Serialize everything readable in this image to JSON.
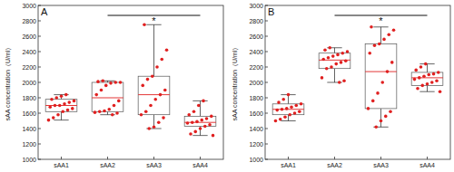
{
  "chart_data": [
    {
      "type": "box",
      "title": "A",
      "y_label": "sAA concentration（U/ml）",
      "color": "#e02020",
      "categories": [
        "sAA1",
        "sAA2",
        "sAA3",
        "sAA4"
      ],
      "ylim": [
        1000,
        3000
      ],
      "yticks": [
        1000,
        1200,
        1400,
        1600,
        1800,
        2000,
        2200,
        2400,
        2600,
        2800,
        3000
      ],
      "boxes": [
        {
          "low": 1510,
          "q1": 1620,
          "median": 1700,
          "q3": 1780,
          "high": 1840
        },
        {
          "low": 1580,
          "q1": 1620,
          "median": 1800,
          "q3": 2000,
          "high": 2020
        },
        {
          "low": 1400,
          "q1": 1580,
          "median": 1840,
          "q3": 2080,
          "high": 2750
        },
        {
          "low": 1310,
          "q1": 1430,
          "median": 1480,
          "q3": 1560,
          "high": 1760
        }
      ],
      "values": [
        [
          1510,
          1540,
          1580,
          1620,
          1640,
          1660,
          1680,
          1700,
          1700,
          1720,
          1740,
          1760,
          1780,
          1800,
          1820,
          1840
        ],
        [
          1580,
          1600,
          1610,
          1620,
          1630,
          1650,
          1700,
          1760,
          1840,
          1900,
          1960,
          1990,
          2000,
          2000,
          2010,
          2020
        ],
        [
          1400,
          1420,
          1480,
          1540,
          1580,
          1620,
          1700,
          1780,
          1840,
          1900,
          1960,
          2040,
          2080,
          2200,
          2300,
          2420,
          2750
        ],
        [
          1310,
          1330,
          1360,
          1400,
          1430,
          1450,
          1470,
          1480,
          1490,
          1510,
          1530,
          1560,
          1580,
          1620,
          1700,
          1760
        ]
      ],
      "annotations": [
        {
          "text": "*",
          "from": "sAA2",
          "to": "sAA4"
        }
      ]
    },
    {
      "type": "box",
      "title": "B",
      "y_label": "sAA concentration（U/ml）",
      "color": "#e02020",
      "categories": [
        "sAA1",
        "sAA2",
        "sAA3",
        "sAA4"
      ],
      "ylim": [
        1000,
        3000
      ],
      "yticks": [
        1000,
        1200,
        1400,
        1600,
        1800,
        2000,
        2200,
        2400,
        2600,
        2800,
        3000
      ],
      "boxes": [
        {
          "low": 1500,
          "q1": 1580,
          "median": 1650,
          "q3": 1720,
          "high": 1840
        },
        {
          "low": 2000,
          "q1": 2180,
          "median": 2290,
          "q3": 2380,
          "high": 2450
        },
        {
          "low": 1420,
          "q1": 1660,
          "median": 2140,
          "q3": 2500,
          "high": 2720
        },
        {
          "low": 1880,
          "q1": 1960,
          "median": 2060,
          "q3": 2130,
          "high": 2240
        }
      ],
      "values": [
        [
          1500,
          1520,
          1550,
          1580,
          1600,
          1620,
          1640,
          1650,
          1660,
          1680,
          1700,
          1720,
          1740,
          1780,
          1840
        ],
        [
          2000,
          2020,
          2060,
          2180,
          2200,
          2240,
          2260,
          2280,
          2300,
          2320,
          2340,
          2360,
          2380,
          2400,
          2420,
          2450
        ],
        [
          1420,
          1500,
          1560,
          1620,
          1660,
          1760,
          1860,
          2000,
          2140,
          2260,
          2380,
          2480,
          2500,
          2560,
          2620,
          2680,
          2720
        ],
        [
          1880,
          1920,
          1960,
          1980,
          2000,
          2020,
          2040,
          2060,
          2080,
          2100,
          2110,
          2130,
          2160,
          2200,
          2240
        ]
      ],
      "annotations": [
        {
          "text": "*",
          "from": "sAA2",
          "to": "sAA4"
        }
      ]
    }
  ]
}
